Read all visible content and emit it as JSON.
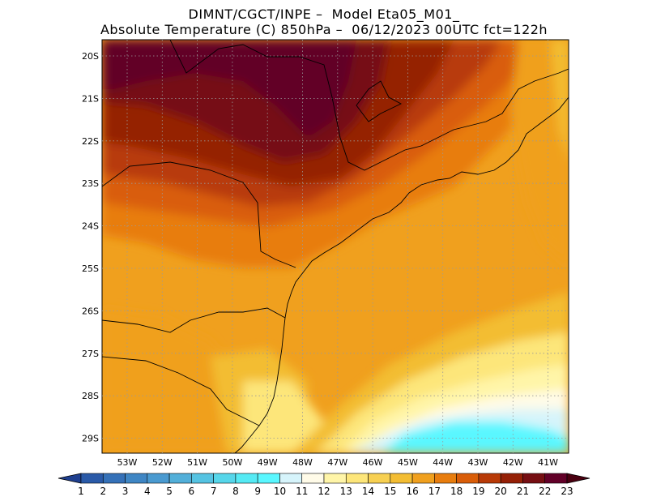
{
  "header": {
    "line1": "DIMNT/CGCT/INPE –  Model Eta05_M01_",
    "line2": "Absolute Temperature (C) 850hPa –  06/12/2023 00UTC fct=122h"
  },
  "axes": {
    "lat_labels": [
      "20S",
      "21S",
      "22S",
      "23S",
      "24S",
      "25S",
      "26S",
      "27S",
      "28S",
      "29S"
    ],
    "lon_labels": [
      "53W",
      "52W",
      "51W",
      "50W",
      "49W",
      "48W",
      "47W",
      "46W",
      "45W",
      "44W",
      "43W",
      "42W",
      "41W"
    ]
  },
  "colorbar": {
    "labels": [
      "1",
      "2",
      "3",
      "4",
      "5",
      "6",
      "7",
      "8",
      "9",
      "10",
      "11",
      "12",
      "13",
      "14",
      "15",
      "16",
      "17",
      "18",
      "19",
      "20",
      "21",
      "22",
      "23"
    ],
    "colors": [
      "#1f3f8f",
      "#2a5aa8",
      "#3571b8",
      "#3f86c4",
      "#4a9ad0",
      "#52afd9",
      "#55c3e2",
      "#56d6ea",
      "#55eaf4",
      "#5af7ff",
      "#d6f4fb",
      "#fffbe8",
      "#fff5a8",
      "#fde67a",
      "#f7d052",
      "#f3bd33",
      "#f0a01e",
      "#e87d0e",
      "#d95d08",
      "#b83a07",
      "#952006",
      "#760e12",
      "#620028",
      "#4a0010"
    ]
  },
  "field": {
    "unit": "C"
  }
}
